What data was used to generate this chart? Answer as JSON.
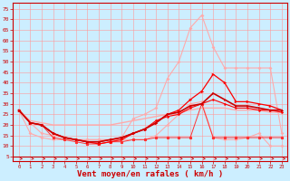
{
  "xlabel": "Vent moyen/en rafales ( km/h )",
  "bg_color": "#cceeff",
  "grid_color": "#ff9999",
  "axis_color": "#cc0000",
  "label_color": "#cc0000",
  "xlim": [
    -0.5,
    23.5
  ],
  "ylim": [
    3,
    78
  ],
  "yticks": [
    5,
    10,
    15,
    20,
    25,
    30,
    35,
    40,
    45,
    50,
    55,
    60,
    65,
    70,
    75
  ],
  "xticks": [
    0,
    1,
    2,
    3,
    4,
    5,
    6,
    7,
    8,
    9,
    10,
    11,
    12,
    13,
    14,
    15,
    16,
    17,
    18,
    19,
    20,
    21,
    22,
    23
  ],
  "hours": [
    0,
    1,
    2,
    3,
    4,
    5,
    6,
    7,
    8,
    9,
    10,
    11,
    12,
    13,
    14,
    15,
    16,
    17,
    18,
    19,
    20,
    21,
    22,
    23
  ],
  "line_pink_high": [
    27,
    21,
    16,
    15,
    14,
    13,
    13,
    13,
    13,
    14,
    23,
    25,
    28,
    42,
    50,
    66,
    72,
    57,
    47,
    47,
    47,
    47,
    47,
    16
  ],
  "line_pink_low": [
    27,
    16,
    14,
    13,
    13,
    13,
    13,
    13,
    13,
    13,
    13,
    13,
    15,
    20,
    25,
    30,
    31,
    14,
    13,
    13,
    14,
    16,
    10,
    10
  ],
  "line_diagonal": [
    27,
    22,
    21,
    20,
    20,
    20,
    20,
    20,
    20,
    21,
    22,
    23,
    24,
    25,
    26,
    27,
    28,
    28,
    28,
    27,
    27,
    27,
    26,
    26
  ],
  "line_red_upper": [
    27,
    21,
    20,
    16,
    14,
    13,
    12,
    11,
    12,
    13,
    16,
    18,
    21,
    25,
    27,
    32,
    36,
    44,
    40,
    31,
    31,
    30,
    29,
    27
  ],
  "line_red_mid1": [
    27,
    21,
    20,
    16,
    14,
    13,
    12,
    12,
    13,
    14,
    16,
    18,
    21,
    25,
    26,
    29,
    30,
    35,
    32,
    29,
    29,
    28,
    27,
    27
  ],
  "line_red_mid2": [
    27,
    21,
    20,
    16,
    14,
    13,
    12,
    12,
    13,
    14,
    16,
    18,
    22,
    24,
    25,
    28,
    30,
    32,
    30,
    28,
    28,
    27,
    27,
    26
  ],
  "line_red_low": [
    27,
    21,
    20,
    14,
    13,
    12,
    11,
    11,
    12,
    12,
    13,
    13,
    14,
    14,
    14,
    14,
    30,
    14,
    14,
    14,
    14,
    14,
    14,
    14
  ]
}
